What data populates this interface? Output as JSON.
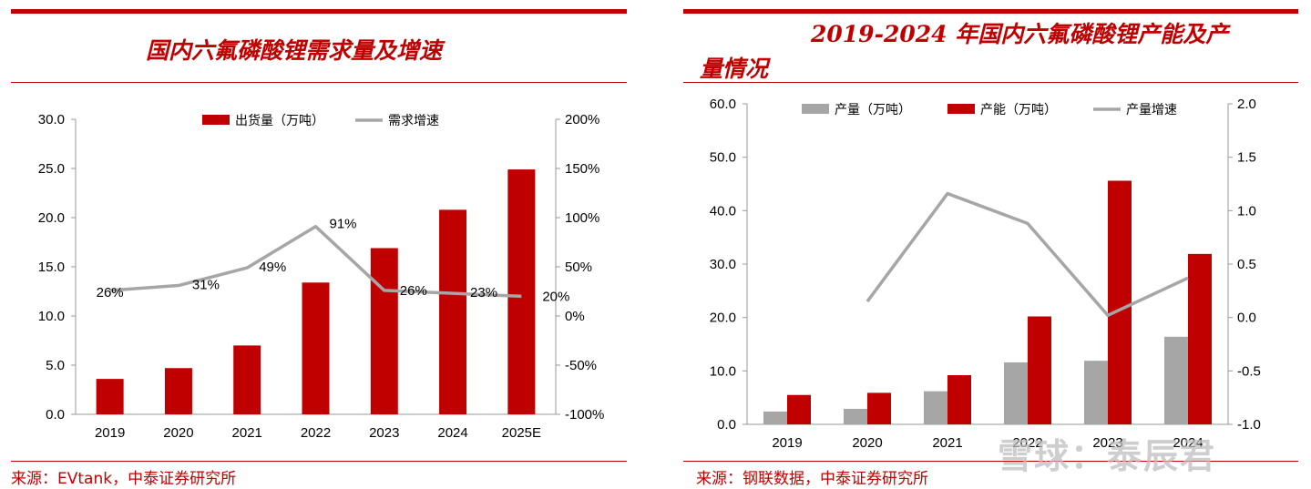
{
  "left": {
    "title": "国内六氟磷酸锂需求量及增速",
    "source": "来源：EVtank，中泰证券研究所"
  },
  "right": {
    "title_line1": "2019-2024 年国内六氟磷酸锂产能及产",
    "title_line2": "量情况",
    "source": "来源：钢联数据，中泰证券研究所"
  },
  "watermark": "雪球：泰辰君",
  "colors": {
    "red": "#c00000",
    "gray": "#a6a6a6",
    "line": "#a6a6a6",
    "axis": "#999999"
  },
  "chart_data": [
    {
      "type": "bar",
      "title": "国内六氟磷酸锂需求量及增速",
      "categories": [
        "2019",
        "2020",
        "2021",
        "2022",
        "2023",
        "2024",
        "2025E"
      ],
      "series": [
        {
          "name": "出货量（万吨）",
          "kind": "bar",
          "axis": "left",
          "color": "#c00000",
          "values": [
            3.6,
            4.7,
            7.0,
            13.4,
            16.9,
            20.8,
            24.9
          ]
        },
        {
          "name": "需求增速",
          "kind": "line",
          "axis": "right",
          "color": "#a6a6a6",
          "values": [
            26,
            31,
            49,
            91,
            26,
            23,
            20
          ],
          "labels": [
            "26%",
            "31%",
            "49%",
            "91%",
            "26%",
            "23%",
            "20%"
          ]
        }
      ],
      "y_left": {
        "min": 0,
        "max": 30,
        "step": 5,
        "ticks": [
          "0.0",
          "5.0",
          "10.0",
          "15.0",
          "20.0",
          "25.0",
          "30.0"
        ]
      },
      "y_right": {
        "min": -100,
        "max": 200,
        "step": 50,
        "ticks": [
          "-100%",
          "-50%",
          "0%",
          "50%",
          "100%",
          "150%",
          "200%"
        ]
      },
      "legend_position": "top"
    },
    {
      "type": "bar",
      "title": "2019-2024 年国内六氟磷酸锂产能及产量情况",
      "categories": [
        "2019",
        "2020",
        "2021",
        "2022",
        "2023",
        "2024"
      ],
      "series": [
        {
          "name": "产量（万吨）",
          "kind": "bar",
          "axis": "left",
          "color": "#a6a6a6",
          "values": [
            2.4,
            2.9,
            6.2,
            11.6,
            11.9,
            16.4
          ]
        },
        {
          "name": "产能（万吨）",
          "kind": "bar",
          "axis": "left",
          "color": "#c00000",
          "values": [
            5.5,
            5.9,
            9.2,
            20.2,
            45.6,
            31.9
          ]
        },
        {
          "name": "产量增速",
          "kind": "line",
          "axis": "right",
          "color": "#a6a6a6",
          "values": [
            null,
            0.15,
            1.16,
            0.88,
            0.02,
            0.37
          ]
        }
      ],
      "y_left": {
        "min": 0,
        "max": 60,
        "step": 10,
        "ticks": [
          "0.0",
          "10.0",
          "20.0",
          "30.0",
          "40.0",
          "50.0",
          "60.0"
        ]
      },
      "y_right": {
        "min": -1,
        "max": 2,
        "step": 0.5,
        "ticks": [
          "-1.0",
          "-0.5",
          "0.0",
          "0.5",
          "1.0",
          "1.5",
          "2.0"
        ]
      },
      "legend_position": "top"
    }
  ]
}
